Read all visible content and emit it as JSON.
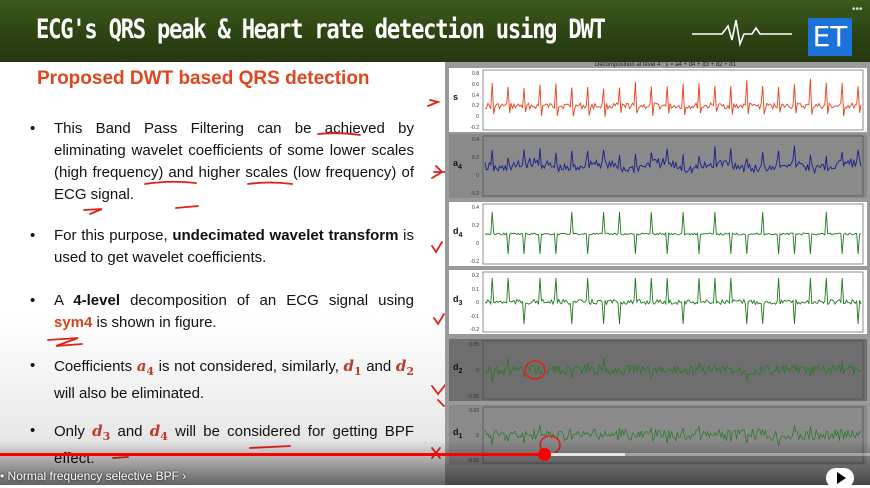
{
  "header": {
    "title": "ECG's QRS peak & Heart rate detection using DWT",
    "badge": "ET",
    "colors": {
      "bar": "#2c4413",
      "badge": "#1c72d8"
    }
  },
  "slide": {
    "subheading": "Proposed DWT based QRS detection",
    "bullets": [
      {
        "parts": [
          "This Band Pass Filtering can be achieved by eliminating wavelet coefficients of some lower scales (high frequency) and higher scales (low frequency) of ECG signal."
        ]
      },
      {
        "parts": [
          "For this purpose, ",
          "undecimated wavelet transform",
          " is used to get wavelet coefficients."
        ]
      },
      {
        "parts": [
          "A ",
          "4-level",
          " decomposition of an ECG signal using ",
          "sym4",
          " is shown in figure."
        ]
      },
      {
        "parts": [
          "Coefficients ",
          "a",
          "4",
          " is not considered, similarly, ",
          "d",
          "1",
          " and ",
          "d",
          "2",
          " will also be eliminated."
        ]
      },
      {
        "parts": [
          "Only ",
          "d",
          "3",
          " and ",
          "d",
          "4",
          " will be considered for getting BPF effect."
        ]
      }
    ],
    "bullet_glyph": "•"
  },
  "figure": {
    "title": "Decomposition at level 4 : s = a4 + d4 + d3 + d2 + d1",
    "panels": [
      {
        "label": "s",
        "sub": "",
        "ticks": [
          "0.8",
          "0.6",
          "0.4",
          "0.2",
          "0",
          "-0.2"
        ],
        "color": "#e8401a"
      },
      {
        "label": "a",
        "sub": "4",
        "ticks": [
          "0.4",
          "0.2",
          "0",
          "-0.2"
        ],
        "color": "#1b1f8c"
      },
      {
        "label": "d",
        "sub": "4",
        "ticks": [
          "0.4",
          "0.2",
          "0",
          "-0.2"
        ],
        "color": "#1f7a1f"
      },
      {
        "label": "d",
        "sub": "3",
        "ticks": [
          "0.2",
          "0.1",
          "0",
          "-0.1",
          "-0.2"
        ],
        "color": "#1f7a1f"
      },
      {
        "label": "d",
        "sub": "2",
        "ticks": [
          "0.05",
          "0",
          "-0.05"
        ],
        "color": "#1f7a1f"
      },
      {
        "label": "d",
        "sub": "1",
        "ticks": [
          "0.02",
          "0",
          "-0.02"
        ],
        "color": "#1f7a1f"
      }
    ]
  },
  "player": {
    "chapter_label": "• Normal frequency selective BPF ›",
    "progress": 0.626
  }
}
